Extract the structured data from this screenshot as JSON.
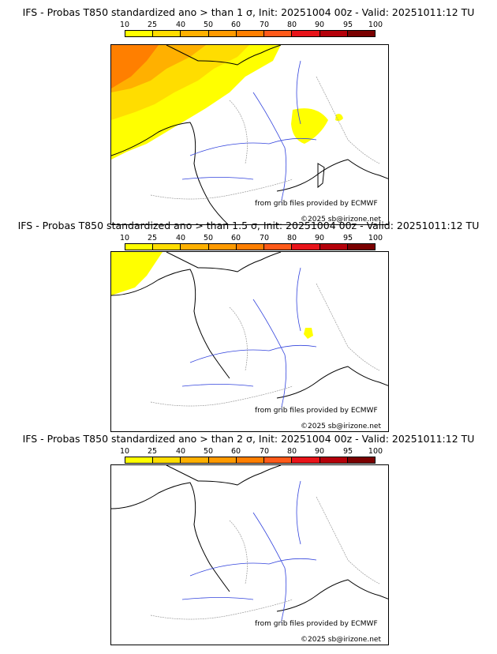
{
  "panels": [
    {
      "title": "IFS - Probas T850  standardized ano > than 1 σ, Init: 20251004 00z - Valid: 20251011:12 TU",
      "credit_source": "from grib files provided by ECMWF",
      "credit_copyright": "©2025 sb@irizone.net"
    },
    {
      "title": "IFS - Probas T850  standardized ano > than 1.5 σ, Init: 20251004 00z - Valid: 20251011:12 TU",
      "credit_source": "from grib files provided by ECMWF",
      "credit_copyright": "©2025 sb@irizone.net"
    },
    {
      "title": "IFS - Probas T850  standardized ano > than 2 σ, Init: 20251004 00z - Valid: 20251011:12 TU",
      "credit_source": "from grib files provided by ECMWF",
      "credit_copyright": "©2025 sb@irizone.net"
    }
  ],
  "legend": {
    "labels": [
      "10",
      "25",
      "40",
      "50",
      "60",
      "70",
      "80",
      "90",
      "95",
      "100"
    ],
    "colors": [
      "#ffff00",
      "#ffdd00",
      "#ffb000",
      "#ff9a00",
      "#ff7f00",
      "#ff5a1a",
      "#e8141a",
      "#b4000a",
      "#7a0000"
    ]
  },
  "colors": {
    "coast": "#000000",
    "rivers": "#3344dd",
    "borders": "#999999"
  }
}
